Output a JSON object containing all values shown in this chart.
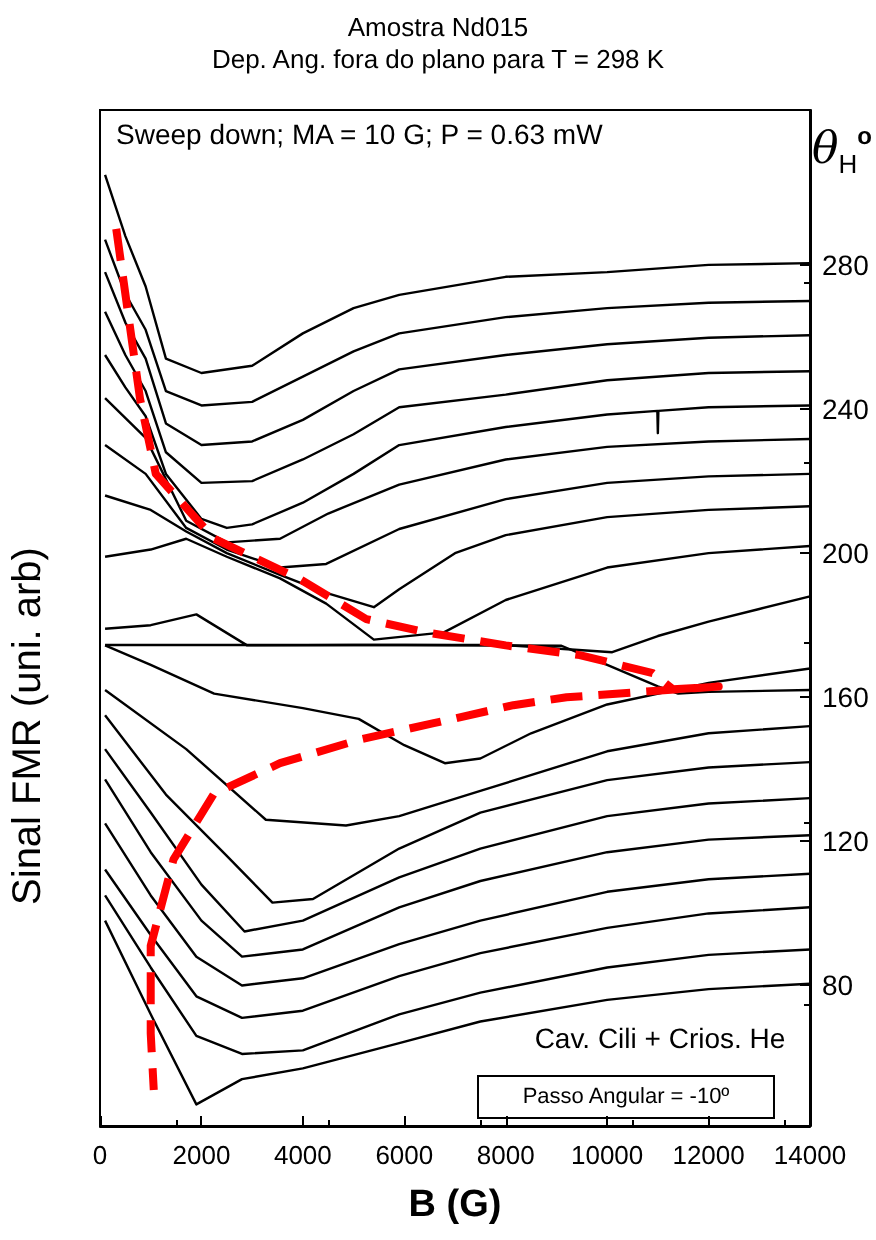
{
  "chart_data": {
    "type": "line",
    "title": "Amostra Nd015",
    "subtitle": "Dep. Ang. fora do plano para T = 298 K",
    "xlabel": "B (G)",
    "ylabel": "Sinal FMR (uni. arb)",
    "y2label": "θ$_{H}$$^{o}$",
    "annotations": [
      "Sweep down; MA = 10 G; P = 0.63 mW",
      "Cav. Cili + Crios. He",
      "Passo Angular = -10º"
    ],
    "xlim": [
      0,
      14000
    ],
    "xticks": [
      0,
      2000,
      4000,
      6000,
      8000,
      10000,
      12000,
      14000
    ],
    "ylim": [
      41,
      323
    ],
    "yticks": [
      80,
      120,
      160,
      200,
      240,
      280
    ],
    "marker": "none",
    "series": [
      {
        "color": "#000000",
        "x": [
          100,
          500,
          900,
          1300,
          2000,
          3000,
          4000,
          5000,
          5900,
          8000,
          10000,
          12000,
          14000
        ],
        "values": [
          305,
          288,
          274,
          254,
          250,
          252,
          261,
          268,
          271.7,
          276.7,
          278,
          280,
          280.5
        ]
      },
      {
        "color": "#000000",
        "x": [
          100,
          500,
          900,
          1300,
          2000,
          3000,
          4000,
          5000,
          5900,
          8000,
          10000,
          12000,
          14000
        ],
        "values": [
          287,
          272,
          262,
          245,
          241,
          242,
          249,
          256,
          261,
          265.5,
          268,
          269.5,
          270
        ]
      },
      {
        "color": "#000000",
        "x": [
          100,
          500,
          900,
          1300,
          2000,
          3000,
          4000,
          5000,
          5900,
          8000,
          10000,
          12000,
          14000
        ],
        "values": [
          278,
          264,
          254,
          236,
          230,
          231,
          237,
          245,
          251,
          255,
          258,
          259.8,
          260.5
        ]
      },
      {
        "color": "#000000",
        "x": [
          100,
          500,
          900,
          1300,
          2000,
          3000,
          4000,
          5000,
          5900,
          8000,
          10000,
          12000,
          14000
        ],
        "values": [
          267,
          255,
          245,
          228,
          219.5,
          220,
          226,
          233,
          240.5,
          244,
          248,
          250,
          250.5
        ]
      },
      {
        "color": "#000000",
        "x": [
          100,
          500,
          900,
          1300,
          2000,
          2500,
          3000,
          4000,
          5000,
          5900,
          8000,
          10000,
          10990,
          11000,
          11010,
          12000,
          14000
        ],
        "values": [
          255,
          246,
          238,
          222,
          209.5,
          207,
          208,
          214,
          222,
          230,
          235,
          238.5,
          239.5,
          233.3,
          239.5,
          240.5,
          241
        ]
      },
      {
        "color": "#000000",
        "x": [
          100,
          900,
          1700,
          2500,
          3550,
          4500,
          5900,
          8000,
          10000,
          12000,
          14000
        ],
        "values": [
          243,
          232,
          209,
          203,
          204,
          211,
          219,
          226,
          229.5,
          231,
          231.7
        ]
      },
      {
        "color": "#000000",
        "x": [
          100,
          900,
          1700,
          2500,
          3550,
          4460,
          5900,
          8000,
          10000,
          12000,
          14000
        ],
        "values": [
          230,
          222,
          207,
          201,
          196,
          197,
          206.7,
          215,
          219.5,
          221.3,
          222
        ]
      },
      {
        "color": "#000000",
        "x": [
          100,
          1000,
          1700,
          2500,
          3550,
          4460,
          5400,
          5900,
          7000,
          8000,
          10000,
          12000,
          14000
        ],
        "values": [
          216,
          212,
          206,
          200,
          194,
          189,
          185,
          190,
          200,
          205,
          210,
          212,
          213
        ]
      },
      {
        "color": "#000000",
        "x": [
          100,
          1000,
          1700,
          2500,
          3550,
          4460,
          5400,
          6780,
          8000,
          10000,
          12000,
          14000
        ],
        "values": [
          199,
          201,
          204,
          199,
          193,
          186,
          176,
          178,
          187,
          196,
          200,
          202
        ]
      },
      {
        "color": "#000000",
        "x": [
          100,
          1000,
          1900,
          2900,
          5000,
          8000,
          10100,
          11000,
          12000,
          13000,
          14000
        ],
        "values": [
          179,
          180,
          183,
          174.4,
          174.5,
          174.5,
          172.5,
          177,
          181,
          184.5,
          188
        ]
      },
      {
        "color": "#000000",
        "x": [
          100,
          3000,
          6000,
          9100,
          10000,
          11000,
          11400,
          12000,
          14000
        ],
        "values": [
          174.5,
          174.5,
          174.5,
          174.3,
          169,
          163,
          161,
          161.5,
          162
        ]
      },
      {
        "color": "#000000",
        "x": [
          100,
          1000,
          2250,
          4000,
          5100,
          6000,
          6800,
          7500,
          8500,
          10000,
          12000,
          14000
        ],
        "values": [
          174.4,
          169,
          161,
          157,
          154,
          146.7,
          141.7,
          143,
          150,
          158,
          164,
          168
        ]
      },
      {
        "color": "#000000",
        "x": [
          100,
          1700,
          3270,
          4850,
          5900,
          7500,
          10000,
          12000,
          14000
        ],
        "values": [
          162,
          145.6,
          126,
          124.4,
          127,
          134,
          145,
          150,
          152
        ]
      },
      {
        "color": "#000000",
        "x": [
          100,
          1300,
          2500,
          3400,
          4200,
          5900,
          7500,
          10000,
          12000,
          14000
        ],
        "values": [
          155,
          133,
          116,
          103,
          104,
          118,
          128,
          137,
          140.5,
          142
        ]
      },
      {
        "color": "#000000",
        "x": [
          100,
          1000,
          2000,
          2850,
          4000,
          5900,
          7500,
          10000,
          12000,
          14000
        ],
        "values": [
          145.6,
          128,
          108,
          95,
          98,
          110,
          118,
          127,
          130.5,
          132
        ]
      },
      {
        "color": "#000000",
        "x": [
          100,
          1000,
          2000,
          2800,
          4000,
          5900,
          7500,
          10000,
          12000,
          14000
        ],
        "values": [
          137.2,
          117,
          98,
          88,
          90,
          101.7,
          109,
          117,
          120.5,
          121.7
        ]
      },
      {
        "color": "#000000",
        "x": [
          100,
          1000,
          1900,
          2800,
          4000,
          5900,
          7500,
          10000,
          12000,
          14000
        ],
        "values": [
          125,
          105,
          88,
          80,
          82,
          91.5,
          98,
          106,
          109.5,
          111
        ]
      },
      {
        "color": "#000000",
        "x": [
          100,
          1000,
          1900,
          2800,
          4000,
          5900,
          7500,
          10000,
          12000,
          14000
        ],
        "values": [
          112.2,
          94,
          77,
          71,
          73,
          82.6,
          89,
          96,
          100,
          101.7
        ]
      },
      {
        "color": "#000000",
        "x": [
          100,
          1000,
          1900,
          2800,
          4000,
          5900,
          7500,
          10000,
          12000,
          14000
        ],
        "values": [
          105,
          85,
          66,
          61,
          62,
          72,
          78,
          85,
          88.5,
          90
        ]
      },
      {
        "color": "#000000",
        "x": [
          100,
          1000,
          1900,
          2800,
          4000,
          5900,
          7500,
          10000,
          12000,
          14000
        ],
        "values": [
          98,
          72,
          47,
          54,
          57,
          64,
          70,
          76,
          79,
          80.5
        ]
      },
      {
        "color": "#ff0000",
        "line_style": "dashed",
        "x": [
          320,
          790,
          1100,
          2250,
          3940,
          5250,
          6430,
          8000,
          9460,
          10900,
          11300,
          12200,
          9200,
          8150,
          6580,
          5130,
          3550,
          2250,
          1450,
          1000,
          1000,
          1060
        ],
        "values": [
          290,
          242.8,
          222,
          204,
          192.8,
          181.7,
          178,
          174.4,
          171.7,
          166.7,
          162.2,
          163,
          160,
          157.8,
          152.8,
          148.3,
          141.7,
          133.3,
          115,
          91,
          66.7,
          51
        ]
      }
    ]
  }
}
